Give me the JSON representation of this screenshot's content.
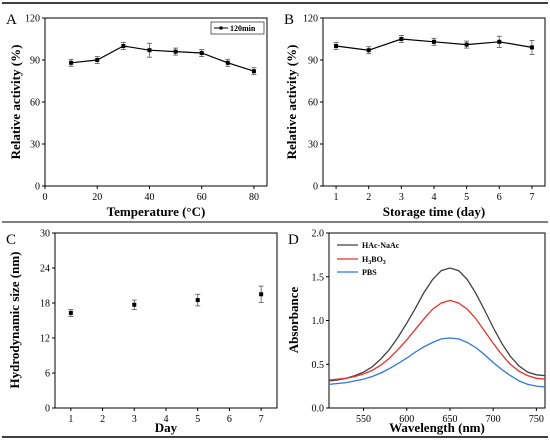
{
  "chart_data": [
    {
      "panel": "A",
      "type": "line",
      "xlabel": "Temperature (°C)",
      "ylabel": "Relative activity (%)",
      "xlim": [
        0,
        85
      ],
      "ylim": [
        0,
        120
      ],
      "xticks": [
        "0",
        "20",
        "40",
        "60",
        "80"
      ],
      "yticks": [
        "0",
        "30",
        "60",
        "90",
        "120"
      ],
      "legend": "top-right",
      "series": [
        {
          "name": "120min",
          "color": "#000000",
          "x": [
            10,
            20,
            30,
            40,
            50,
            60,
            70,
            80
          ],
          "values": [
            88,
            90,
            100,
            97,
            96,
            95,
            88,
            82
          ],
          "errors": [
            2.5,
            2.5,
            2.5,
            5,
            2.5,
            2.5,
            2.5,
            2.5
          ]
        }
      ]
    },
    {
      "panel": "B",
      "type": "line",
      "xlabel": "Storage time (day)",
      "ylabel": "Relative activity (%)",
      "xlim": [
        0.6,
        7.4
      ],
      "ylim": [
        0,
        120
      ],
      "xticks": [
        "1",
        "2",
        "3",
        "4",
        "5",
        "6",
        "7"
      ],
      "yticks": [
        "0",
        "30",
        "60",
        "90",
        "120"
      ],
      "series": [
        {
          "color": "#000000",
          "x": [
            1,
            2,
            3,
            4,
            5,
            6,
            7
          ],
          "values": [
            100,
            97,
            105,
            103,
            101,
            103,
            99
          ],
          "errors": [
            2.5,
            2.5,
            2.5,
            2.5,
            2.5,
            4,
            5
          ]
        }
      ]
    },
    {
      "panel": "C",
      "type": "scatter",
      "xlabel": "Day",
      "ylabel": "Hydrodynamic size (nm)",
      "xlim": [
        0.5,
        7.5
      ],
      "ylim": [
        0,
        30
      ],
      "xticks": [
        "1",
        "2",
        "3",
        "4",
        "5",
        "6",
        "7"
      ],
      "yticks": [
        "0",
        "6",
        "12",
        "18",
        "24",
        "30"
      ],
      "series": [
        {
          "color": "#000000",
          "x": [
            1,
            3,
            5,
            7
          ],
          "values": [
            16.3,
            17.7,
            18.5,
            19.5
          ],
          "errors": [
            0.6,
            0.8,
            1.0,
            1.4
          ]
        }
      ]
    },
    {
      "panel": "D",
      "type": "line",
      "xlabel": "Wavelength (nm)",
      "ylabel": "Absorbance",
      "xlim": [
        510,
        760
      ],
      "ylim": [
        0,
        2.0
      ],
      "xticks": [
        "550",
        "600",
        "650",
        "700",
        "750"
      ],
      "yticks": [
        "0.0",
        "0.5",
        "1.0",
        "1.5",
        "2.0"
      ],
      "legend": "top-left",
      "series": [
        {
          "name": "HAc-NaAc",
          "color": "#404040",
          "x": [
            510,
            520,
            530,
            540,
            550,
            560,
            570,
            580,
            590,
            600,
            610,
            620,
            630,
            640,
            650,
            660,
            670,
            680,
            690,
            700,
            710,
            720,
            730,
            740,
            750,
            760
          ],
          "values": [
            0.31,
            0.32,
            0.34,
            0.37,
            0.41,
            0.47,
            0.56,
            0.67,
            0.81,
            0.97,
            1.14,
            1.32,
            1.47,
            1.57,
            1.6,
            1.57,
            1.47,
            1.31,
            1.12,
            0.92,
            0.74,
            0.59,
            0.48,
            0.41,
            0.38,
            0.37
          ]
        },
        {
          "name": "H3BO3",
          "color": "#e8322e",
          "x": [
            510,
            520,
            530,
            540,
            550,
            560,
            570,
            580,
            590,
            600,
            610,
            620,
            630,
            640,
            650,
            660,
            670,
            680,
            690,
            700,
            710,
            720,
            730,
            740,
            750,
            760
          ],
          "values": [
            0.32,
            0.33,
            0.34,
            0.36,
            0.39,
            0.43,
            0.49,
            0.57,
            0.67,
            0.78,
            0.9,
            1.02,
            1.13,
            1.2,
            1.23,
            1.2,
            1.13,
            1.02,
            0.88,
            0.74,
            0.61,
            0.5,
            0.42,
            0.37,
            0.34,
            0.33
          ]
        },
        {
          "name": "PBS",
          "color": "#2f78d8",
          "x": [
            510,
            520,
            530,
            540,
            550,
            560,
            570,
            580,
            590,
            600,
            610,
            620,
            630,
            640,
            650,
            660,
            670,
            680,
            690,
            700,
            710,
            720,
            730,
            740,
            750,
            760
          ],
          "values": [
            0.27,
            0.28,
            0.29,
            0.31,
            0.33,
            0.36,
            0.4,
            0.45,
            0.51,
            0.57,
            0.64,
            0.7,
            0.75,
            0.79,
            0.8,
            0.79,
            0.75,
            0.69,
            0.61,
            0.52,
            0.44,
            0.37,
            0.31,
            0.27,
            0.25,
            0.24
          ]
        }
      ]
    }
  ]
}
